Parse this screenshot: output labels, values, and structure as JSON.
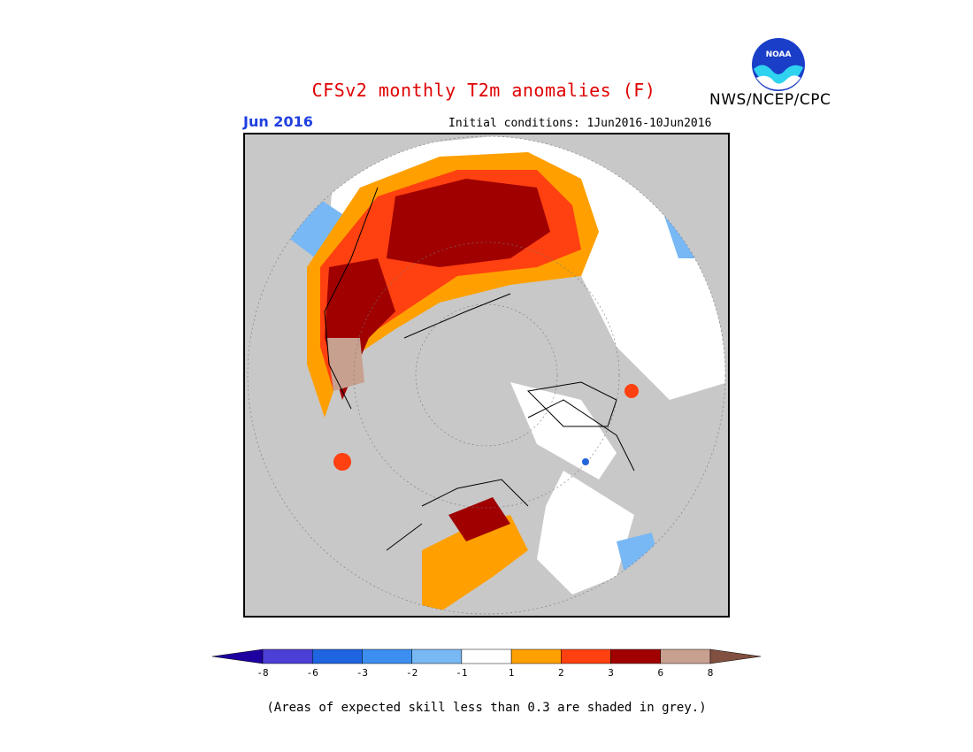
{
  "title": "CFSv2 monthly T2m anomalies (F)",
  "agency": "NWS/NCEP/CPC",
  "logo_text": "NOAA",
  "forecast_month": "Jun 2016",
  "initial_conditions": "Initial conditions: 1Jun2016-10Jun2016",
  "note": "(Areas of expected skill less than 0.3 are shaded in grey.)",
  "legend": {
    "colors": [
      "#1e00a0",
      "#4c3fd6",
      "#1f64e0",
      "#3c8ff0",
      "#78b8f5",
      "#ffffff",
      "#ffa000",
      "#ff4010",
      "#a00000",
      "#c8a090",
      "#825040"
    ],
    "tick_labels": [
      "-8",
      "-6",
      "-3",
      "-2",
      "-1",
      "1",
      "2",
      "3",
      "6",
      "8"
    ]
  },
  "map": {
    "projection": "north polar stereographic",
    "skill_mask_color": "#c8c8c8",
    "coastline_color": "#000000"
  }
}
